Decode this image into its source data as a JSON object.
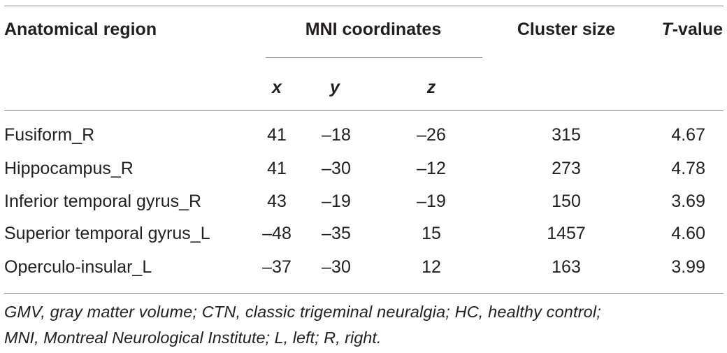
{
  "table": {
    "headers": {
      "region": "Anatomical region",
      "mni": "MNI coordinates",
      "cluster": "Cluster size",
      "t_italic": "T",
      "t_rest": "-value",
      "x": "x",
      "y": "y",
      "z": "z"
    },
    "rows": [
      {
        "region": "Fusiform_R",
        "x": "41",
        "y": "–18",
        "z": "–26",
        "cluster": "315",
        "t": "4.67"
      },
      {
        "region": "Hippocampus_R",
        "x": "41",
        "y": "–30",
        "z": "–12",
        "cluster": "273",
        "t": "4.78"
      },
      {
        "region": "Inferior temporal gyrus_R",
        "x": "43",
        "y": "–19",
        "z": "–19",
        "cluster": "150",
        "t": "3.69"
      },
      {
        "region": "Superior temporal gyrus_L",
        "x": "–48",
        "y": "–35",
        "z": "15",
        "cluster": "1457",
        "t": "4.60"
      },
      {
        "region": "Operculo-insular_L",
        "x": "–37",
        "y": "–30",
        "z": "12",
        "cluster": "163",
        "t": "3.99"
      }
    ],
    "footnote": {
      "line1": "GMV, gray matter volume; CTN, classic trigeminal neuralgia; HC, healthy control;",
      "line2": "MNI, Montreal Neurological Institute; L, left; R, right."
    }
  }
}
